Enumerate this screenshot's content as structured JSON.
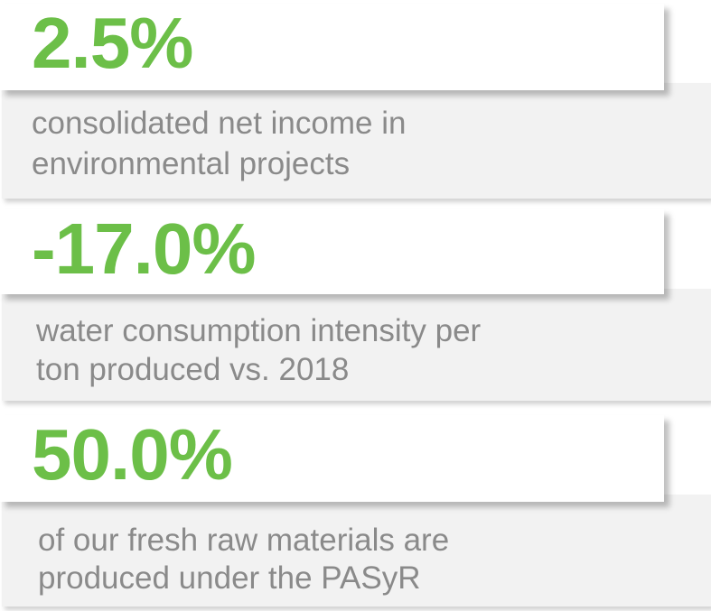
{
  "stats": [
    {
      "value": "2.5%",
      "line1": "consolidated net income in",
      "line2": "environmental projects"
    },
    {
      "value": "-17.0%",
      "line1": "water consumption intensity per",
      "line2": "ton produced vs. 2018"
    },
    {
      "value": "50.0%",
      "line1": "of our fresh raw materials are",
      "line2": "produced under the PASyR"
    }
  ],
  "colors": {
    "accent": "#6cbf48",
    "text": "#8a8a8a",
    "panel": "#f2f2f2"
  }
}
